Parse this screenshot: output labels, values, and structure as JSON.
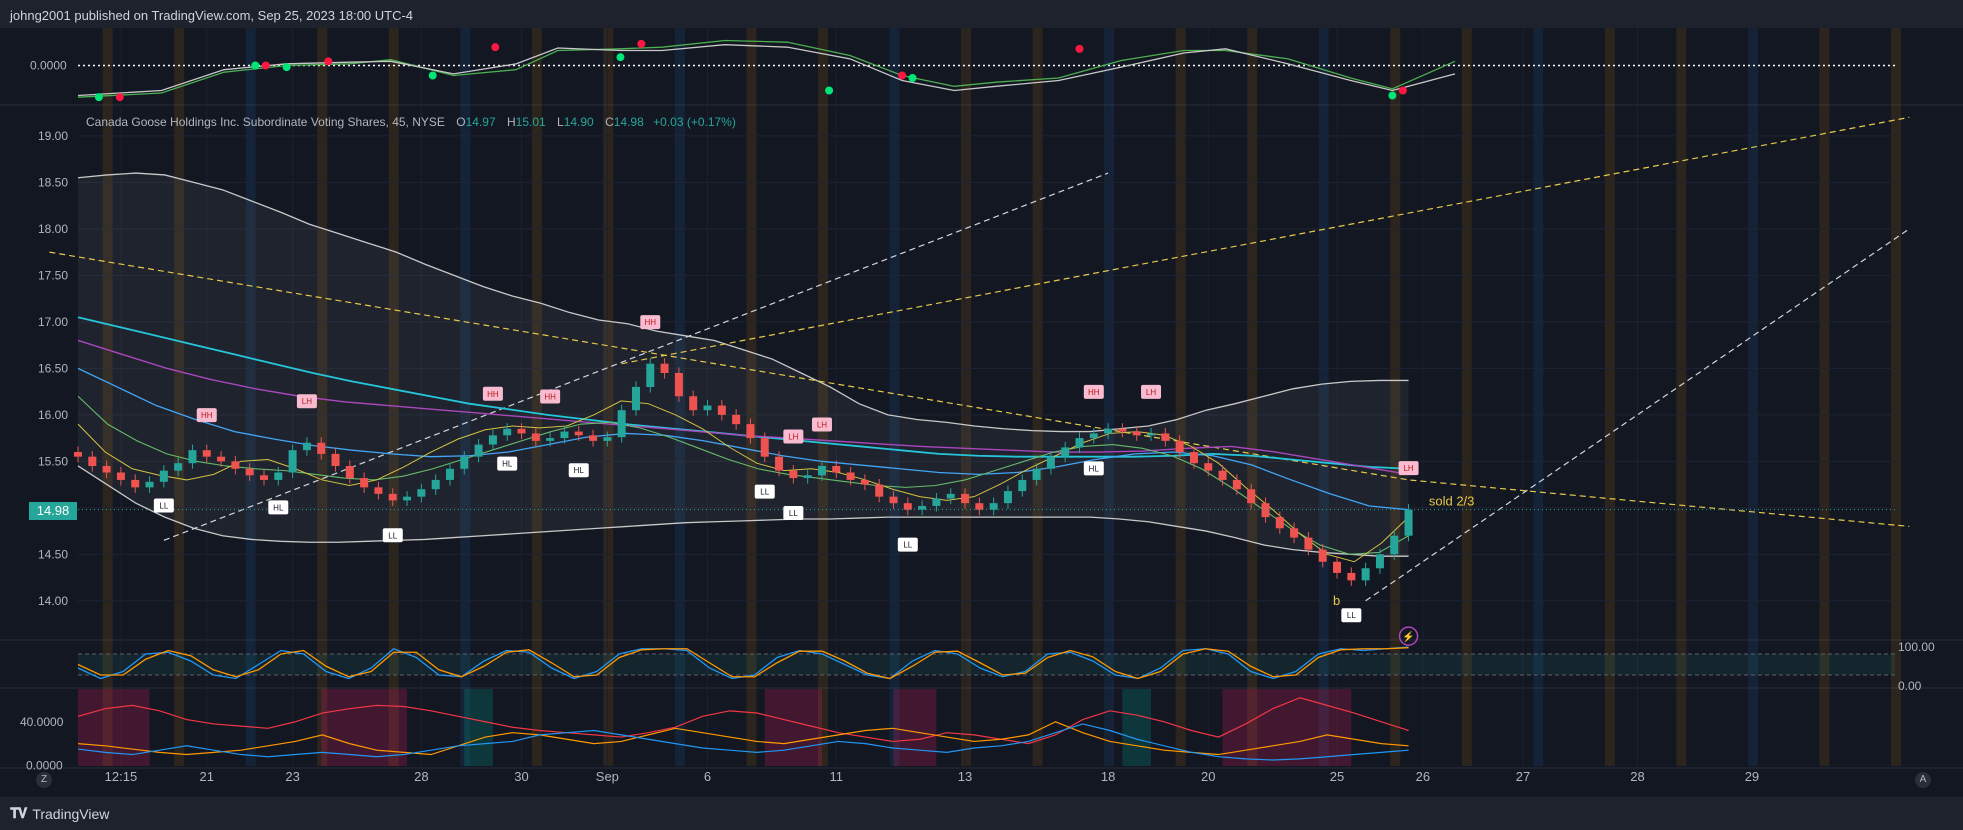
{
  "header": {
    "publisher_text": "johng2001 published on TradingView.com, Sep 25, 2023 18:00 UTC-4"
  },
  "footer": {
    "brand": "TradingView",
    "brand_icon": "tradingview-logo-icon"
  },
  "legend": {
    "symbol": "Canada Goose Holdings Inc. Subordinate Voting Shares, 45, NYSE",
    "o_label": "O",
    "o_value": "14.97",
    "h_label": "H",
    "h_value": "15.01",
    "l_label": "L",
    "l_value": "14.90",
    "c_label": "C",
    "c_value": "14.98",
    "change": "+0.03 (+0.17%)"
  },
  "last_price": "14.98",
  "corner_buttons": {
    "left": "Z",
    "right": "A"
  },
  "colors": {
    "background": "#131722",
    "up": "#26a69a",
    "down": "#ef5350",
    "band": "#c8c8c8",
    "ema_cyan": "#26c6da",
    "ema_purple": "#ab47bc",
    "ema_blue": "#42a5f5",
    "ema_green": "#66bb6a",
    "ema_yellow": "#d4c240",
    "trend_yellow": "#e6c84a",
    "trend_white": "#d1d4dc",
    "stoch_k": "#2196f3",
    "stoch_d": "#ff9800",
    "adx_red": "#f23645"
  },
  "chart_data": [
    {
      "type": "line",
      "name": "top-oscillator",
      "ylim": [
        -0.45,
        0.45
      ],
      "y_ticks": [
        "0.0000"
      ],
      "x": [
        0,
        8,
        14,
        20,
        26,
        30,
        36,
        42,
        46,
        52,
        56,
        62,
        68,
        74,
        79,
        84,
        88,
        94,
        100,
        106,
        110,
        116,
        122,
        126,
        132
      ],
      "series": [
        {
          "values": [
            -0.38,
            -0.33,
            -0.08,
            0.0,
            0.02,
            0.07,
            -0.12,
            -0.05,
            0.18,
            0.2,
            0.22,
            0.3,
            0.28,
            0.12,
            -0.12,
            -0.25,
            -0.2,
            -0.15,
            0.06,
            0.18,
            0.18,
            0.08,
            -0.15,
            -0.28,
            0.05
          ]
        },
        {
          "values": [
            -0.36,
            -0.3,
            -0.05,
            0.02,
            0.04,
            0.05,
            -0.1,
            0.02,
            0.21,
            0.18,
            0.18,
            0.25,
            0.22,
            0.08,
            -0.18,
            -0.3,
            -0.25,
            -0.18,
            -0.02,
            0.15,
            0.2,
            0.02,
            -0.18,
            -0.3,
            -0.1
          ]
        }
      ],
      "signal_up": [
        [
          2,
          -0.38
        ],
        [
          17,
          0.0
        ],
        [
          20,
          -0.02
        ],
        [
          34,
          -0.12
        ],
        [
          52,
          0.1
        ],
        [
          72,
          -0.3
        ],
        [
          80,
          -0.15
        ],
        [
          126,
          -0.36
        ]
      ],
      "signal_down": [
        [
          4,
          -0.38
        ],
        [
          18,
          0.0
        ],
        [
          24,
          0.05
        ],
        [
          40,
          0.22
        ],
        [
          54,
          0.26
        ],
        [
          79,
          -0.12
        ],
        [
          96,
          0.2
        ],
        [
          127,
          -0.3
        ]
      ]
    },
    {
      "type": "candlestick",
      "name": "main-price",
      "ylim": [
        13.6,
        19.3
      ],
      "y_ticks": [
        "19.00",
        "18.50",
        "18.00",
        "17.50",
        "17.00",
        "16.50",
        "16.00",
        "15.50",
        "15.00",
        "14.50",
        "14.00"
      ],
      "x_ticks": [
        {
          "i": 3,
          "label": "12:15"
        },
        {
          "i": 9,
          "label": "21"
        },
        {
          "i": 15,
          "label": "23"
        },
        {
          "i": 24,
          "label": "28"
        },
        {
          "i": 31,
          "label": "30"
        },
        {
          "i": 37,
          "label": "Sep"
        },
        {
          "i": 44,
          "label": "6"
        },
        {
          "i": 53,
          "label": "11"
        },
        {
          "i": 62,
          "label": "13"
        },
        {
          "i": 72,
          "label": "18"
        },
        {
          "i": 79,
          "label": "20"
        },
        {
          "i": 88,
          "label": "25"
        },
        {
          "i": 94,
          "label": "26"
        },
        {
          "i": 101,
          "label": "27"
        },
        {
          "i": 109,
          "label": "28"
        },
        {
          "i": 117,
          "label": "29"
        }
      ],
      "x_count": 128,
      "close": [
        15.55,
        15.45,
        15.38,
        15.3,
        15.22,
        15.28,
        15.4,
        15.48,
        15.62,
        15.55,
        15.5,
        15.42,
        15.35,
        15.3,
        15.38,
        15.62,
        15.7,
        15.58,
        15.45,
        15.32,
        15.22,
        15.15,
        15.08,
        15.12,
        15.2,
        15.3,
        15.42,
        15.55,
        15.68,
        15.78,
        15.85,
        15.8,
        15.72,
        15.75,
        15.82,
        15.78,
        15.72,
        15.76,
        16.05,
        16.3,
        16.55,
        16.45,
        16.2,
        16.05,
        16.1,
        16.0,
        15.9,
        15.75,
        15.55,
        15.4,
        15.32,
        15.35,
        15.45,
        15.38,
        15.3,
        15.25,
        15.12,
        15.05,
        14.98,
        15.02,
        15.1,
        15.15,
        15.05,
        14.98,
        15.05,
        15.18,
        15.3,
        15.42,
        15.55,
        15.65,
        15.75,
        15.8,
        15.85,
        15.82,
        15.78,
        15.8,
        15.72,
        15.6,
        15.48,
        15.4,
        15.3,
        15.2,
        15.05,
        14.9,
        14.78,
        14.68,
        14.55,
        14.42,
        14.3,
        14.22,
        14.35,
        14.5,
        14.7,
        14.98
      ],
      "upper_band": [
        18.55,
        18.58,
        18.6,
        18.58,
        18.5,
        18.42,
        18.3,
        18.18,
        18.05,
        17.95,
        17.85,
        17.75,
        17.62,
        17.5,
        17.38,
        17.28,
        17.2,
        17.1,
        17.02,
        16.98,
        16.9,
        16.85,
        16.8,
        16.7,
        16.6,
        16.45,
        16.3,
        16.12,
        16.0,
        15.95,
        15.92,
        15.88,
        15.85,
        15.83,
        15.82,
        15.82,
        15.85,
        15.88,
        15.95,
        16.05,
        16.12,
        16.2,
        16.28,
        16.33,
        16.36,
        16.37,
        16.37
      ],
      "lower_band": [
        15.45,
        15.25,
        15.05,
        14.9,
        14.78,
        14.7,
        14.66,
        14.64,
        14.63,
        14.63,
        14.64,
        14.65,
        14.66,
        14.68,
        14.7,
        14.72,
        14.74,
        14.76,
        14.78,
        14.8,
        14.82,
        14.84,
        14.85,
        14.86,
        14.87,
        14.88,
        14.88,
        14.89,
        14.9,
        14.9,
        14.9,
        14.9,
        14.9,
        14.9,
        14.9,
        14.9,
        14.88,
        14.85,
        14.8,
        14.75,
        14.68,
        14.6,
        14.55,
        14.52,
        14.5,
        14.48,
        14.48
      ],
      "ema_cyan": [
        17.05,
        16.95,
        16.85,
        16.75,
        16.65,
        16.55,
        16.45,
        16.36,
        16.28,
        16.2,
        16.12,
        16.06,
        16.0,
        15.95,
        15.9,
        15.86,
        15.82,
        15.78,
        15.74,
        15.7,
        15.66,
        15.62,
        15.58,
        15.56,
        15.55,
        15.55,
        15.55,
        15.55,
        15.56,
        15.58,
        15.56,
        15.52,
        15.48,
        15.44,
        15.42
      ],
      "ema_purple": [
        16.8,
        16.65,
        16.5,
        16.38,
        16.28,
        16.2,
        16.14,
        16.1,
        16.06,
        16.02,
        15.98,
        15.94,
        15.9,
        15.86,
        15.82,
        15.78,
        15.75,
        15.72,
        15.69,
        15.66,
        15.64,
        15.62,
        15.6,
        15.6,
        15.61,
        15.64,
        15.66,
        15.6,
        15.52,
        15.44,
        15.36
      ],
      "ema_blue": [
        16.5,
        16.3,
        16.1,
        15.95,
        15.82,
        15.74,
        15.67,
        15.62,
        15.58,
        15.55,
        15.56,
        15.6,
        15.68,
        15.76,
        15.8,
        15.78,
        15.72,
        15.64,
        15.56,
        15.5,
        15.46,
        15.42,
        15.38,
        15.36,
        15.38,
        15.44,
        15.52,
        15.58,
        15.6,
        15.56,
        15.46,
        15.3,
        15.15,
        15.02,
        14.98
      ],
      "ema_green": [
        16.2,
        15.9,
        15.72,
        15.58,
        15.5,
        15.45,
        15.42,
        15.4,
        15.36,
        15.32,
        15.3,
        15.34,
        15.42,
        15.52,
        15.62,
        15.72,
        15.82,
        15.9,
        15.92,
        15.86,
        15.76,
        15.64,
        15.52,
        15.42,
        15.36,
        15.32,
        15.28,
        15.24,
        15.22,
        15.24,
        15.3,
        15.4,
        15.5,
        15.6,
        15.66,
        15.68,
        15.64,
        15.56,
        15.42,
        15.22,
        15.0,
        14.78,
        14.6,
        14.5,
        14.52,
        14.7
      ],
      "ema_yellow": [
        15.9,
        15.6,
        15.42,
        15.35,
        15.3,
        15.36,
        15.5,
        15.52,
        15.42,
        15.3,
        15.24,
        15.3,
        15.44,
        15.6,
        15.74,
        15.84,
        15.88,
        15.86,
        15.88,
        16.0,
        16.15,
        16.12,
        16.0,
        15.85,
        15.65,
        15.48,
        15.4,
        15.42,
        15.38,
        15.3,
        15.2,
        15.12,
        15.08,
        15.12,
        15.26,
        15.42,
        15.56,
        15.7,
        15.8,
        15.82,
        15.78,
        15.66,
        15.48,
        15.22,
        14.98,
        14.72,
        14.5,
        14.42,
        14.62,
        14.9
      ],
      "swing_labels": [
        {
          "i": 9,
          "text": "HH",
          "kind": "high"
        },
        {
          "i": 16,
          "text": "LH",
          "kind": "high"
        },
        {
          "i": 29,
          "text": "HH",
          "kind": "high"
        },
        {
          "i": 33,
          "text": "HH",
          "kind": "high"
        },
        {
          "i": 40,
          "text": "HH",
          "kind": "high"
        },
        {
          "i": 52,
          "text": "LH",
          "kind": "high"
        },
        {
          "i": 50,
          "text": "LH",
          "kind": "high"
        },
        {
          "i": 71,
          "text": "HH",
          "kind": "high"
        },
        {
          "i": 75,
          "text": "LH",
          "kind": "high"
        },
        {
          "i": 93,
          "text": "LH",
          "kind": "high"
        },
        {
          "i": 6,
          "text": "LL",
          "kind": "low"
        },
        {
          "i": 14,
          "text": "HL",
          "kind": "low"
        },
        {
          "i": 22,
          "text": "LL",
          "kind": "low"
        },
        {
          "i": 30,
          "text": "HL",
          "kind": "low"
        },
        {
          "i": 35,
          "text": "HL",
          "kind": "low"
        },
        {
          "i": 48,
          "text": "LL",
          "kind": "low"
        },
        {
          "i": 50,
          "text": "LL",
          "kind": "low"
        },
        {
          "i": 58,
          "text": "LL",
          "kind": "low"
        },
        {
          "i": 71,
          "text": "HL",
          "kind": "low"
        },
        {
          "i": 89,
          "text": "LL",
          "kind": "low"
        }
      ],
      "annotations": [
        {
          "text": "sold 2/3"
        },
        {
          "text": "b"
        }
      ]
    },
    {
      "type": "line",
      "name": "stochastic",
      "ylim": [
        0,
        100
      ],
      "y_ticks": [
        "100.00",
        "0.00"
      ],
      "series": [
        {
          "values": [
            40,
            10,
            30,
            80,
            85,
            60,
            20,
            10,
            50,
            90,
            80,
            30,
            10,
            40,
            95,
            70,
            20,
            15,
            60,
            90,
            85,
            40,
            10,
            30,
            80,
            95,
            95,
            90,
            40,
            10,
            20,
            70,
            90,
            80,
            50,
            20,
            10,
            60,
            90,
            80,
            40,
            15,
            30,
            80,
            85,
            60,
            20,
            10,
            40,
            90,
            95,
            80,
            30,
            10,
            30,
            80,
            95,
            90,
            95,
            100
          ]
        },
        {
          "values": [
            50,
            20,
            20,
            65,
            90,
            75,
            35,
            15,
            35,
            80,
            90,
            45,
            15,
            30,
            85,
            85,
            35,
            15,
            45,
            85,
            92,
            55,
            15,
            20,
            70,
            92,
            95,
            95,
            55,
            15,
            15,
            55,
            88,
            88,
            60,
            25,
            10,
            45,
            85,
            88,
            55,
            20,
            25,
            70,
            90,
            72,
            30,
            10,
            30,
            80,
            95,
            88,
            45,
            15,
            20,
            70,
            92,
            95,
            95,
            98
          ]
        }
      ]
    },
    {
      "type": "line",
      "name": "adx-dmi",
      "ylim": [
        -0.5,
        70
      ],
      "y_ticks": [
        "40.0000",
        "0.0000"
      ],
      "series": [
        {
          "values": [
            45,
            52,
            55,
            50,
            42,
            38,
            36,
            34,
            40,
            48,
            52,
            55,
            54,
            50,
            45,
            40,
            35,
            32,
            30,
            28,
            26,
            30,
            35,
            45,
            50,
            48,
            42,
            36,
            30,
            26,
            22,
            24,
            30,
            28,
            24,
            20,
            28,
            42,
            50,
            46,
            40,
            32,
            26,
            38,
            52,
            62,
            55,
            48,
            40,
            32
          ]
        },
        {
          "values": [
            20,
            18,
            15,
            12,
            10,
            12,
            14,
            18,
            22,
            28,
            20,
            14,
            12,
            10,
            18,
            26,
            30,
            28,
            24,
            20,
            22,
            28,
            34,
            30,
            26,
            22,
            20,
            24,
            28,
            32,
            34,
            30,
            26,
            22,
            24,
            28,
            40,
            30,
            22,
            18,
            14,
            12,
            10,
            14,
            18,
            22,
            28,
            24,
            20,
            18
          ]
        },
        {
          "values": [
            15,
            12,
            10,
            14,
            18,
            14,
            10,
            8,
            10,
            12,
            10,
            8,
            10,
            14,
            18,
            20,
            22,
            28,
            30,
            32,
            28,
            24,
            20,
            16,
            14,
            12,
            14,
            18,
            22,
            20,
            16,
            14,
            12,
            16,
            18,
            22,
            30,
            38,
            32,
            24,
            18,
            12,
            8,
            6,
            5,
            6,
            8,
            10,
            12,
            14
          ]
        }
      ]
    }
  ]
}
